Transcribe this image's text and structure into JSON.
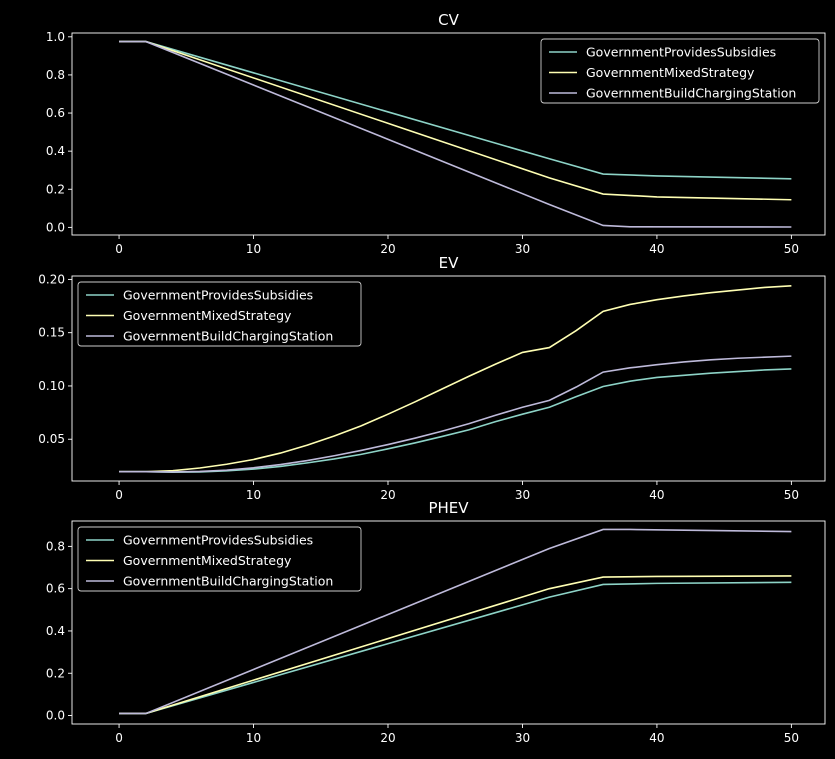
{
  "figure": {
    "background": "#000000",
    "foreground": "#ffffff"
  },
  "chart_data": [
    {
      "type": "line",
      "title": "CV",
      "xlim": [
        -3.5,
        52.5
      ],
      "ylim": [
        -0.04,
        1.02
      ],
      "xticks": [
        0,
        10,
        20,
        30,
        40,
        50
      ],
      "yticks": [
        0.0,
        0.2,
        0.4,
        0.6,
        0.8,
        1.0
      ],
      "ytick_labels": [
        "0.0",
        "0.2",
        "0.4",
        "0.6",
        "0.8",
        "1.0"
      ],
      "legend_position": "upper right",
      "series": [
        {
          "name": "GovernmentProvidesSubsidies",
          "color": "#8dd3c7",
          "x": [
            0,
            2,
            32,
            36,
            40,
            50
          ],
          "y": [
            0.975,
            0.975,
            0.36,
            0.28,
            0.27,
            0.255
          ]
        },
        {
          "name": "GovernmentMixedStrategy",
          "color": "#ffffb3",
          "x": [
            0,
            2,
            32,
            36,
            40,
            50
          ],
          "y": [
            0.975,
            0.975,
            0.26,
            0.175,
            0.16,
            0.145
          ]
        },
        {
          "name": "GovernmentBuildChargingStation",
          "color": "#bebada",
          "x": [
            0,
            2,
            32,
            36,
            38,
            50
          ],
          "y": [
            0.975,
            0.975,
            0.12,
            0.01,
            0.003,
            0.002
          ]
        }
      ]
    },
    {
      "type": "line",
      "title": "EV",
      "xlim": [
        -3.5,
        52.5
      ],
      "ylim": [
        0.0108,
        0.2032
      ],
      "xticks": [
        0,
        10,
        20,
        30,
        40,
        50
      ],
      "yticks": [
        0.05,
        0.1,
        0.15,
        0.2
      ],
      "ytick_labels": [
        "0.05",
        "0.10",
        "0.15",
        "0.20"
      ],
      "legend_position": "upper left",
      "series": [
        {
          "name": "GovernmentProvidesSubsidies",
          "color": "#8dd3c7",
          "x": [
            0,
            2,
            4,
            6,
            8,
            10,
            12,
            14,
            16,
            18,
            20,
            22,
            24,
            26,
            28,
            30,
            32,
            34,
            36,
            38,
            40,
            42,
            44,
            46,
            48,
            50
          ],
          "y": [
            0.0195,
            0.0195,
            0.019,
            0.0193,
            0.0203,
            0.022,
            0.0245,
            0.0278,
            0.0315,
            0.0358,
            0.041,
            0.0465,
            0.0525,
            0.0588,
            0.0665,
            0.0735,
            0.08,
            0.09,
            0.0995,
            0.1045,
            0.108,
            0.11,
            0.112,
            0.1135,
            0.115,
            0.116
          ]
        },
        {
          "name": "GovernmentMixedStrategy",
          "color": "#ffffb3",
          "x": [
            0,
            2,
            4,
            6,
            8,
            10,
            12,
            14,
            16,
            18,
            20,
            22,
            24,
            26,
            28,
            30,
            32,
            34,
            36,
            38,
            40,
            42,
            44,
            46,
            48,
            50
          ],
          "y": [
            0.0195,
            0.0195,
            0.0205,
            0.023,
            0.0265,
            0.031,
            0.037,
            0.0445,
            0.053,
            0.0625,
            0.0735,
            0.085,
            0.097,
            0.109,
            0.1205,
            0.1315,
            0.136,
            0.152,
            0.17,
            0.1765,
            0.181,
            0.1845,
            0.1875,
            0.19,
            0.1925,
            0.194
          ]
        },
        {
          "name": "GovernmentBuildChargingStation",
          "color": "#bebada",
          "x": [
            0,
            2,
            4,
            6,
            8,
            10,
            12,
            14,
            16,
            18,
            20,
            22,
            24,
            26,
            28,
            30,
            32,
            34,
            36,
            38,
            40,
            42,
            44,
            46,
            48,
            50
          ],
          "y": [
            0.0195,
            0.0195,
            0.0193,
            0.0198,
            0.021,
            0.0232,
            0.0262,
            0.03,
            0.0345,
            0.0395,
            0.045,
            0.051,
            0.0575,
            0.0645,
            0.0725,
            0.08,
            0.0865,
            0.099,
            0.113,
            0.117,
            0.12,
            0.1225,
            0.1245,
            0.126,
            0.127,
            0.128
          ]
        }
      ]
    },
    {
      "type": "line",
      "title": "PHEV",
      "xlim": [
        -3.5,
        52.5
      ],
      "ylim": [
        -0.04,
        0.92
      ],
      "xticks": [
        0,
        10,
        20,
        30,
        40,
        50
      ],
      "yticks": [
        0.0,
        0.2,
        0.4,
        0.6,
        0.8
      ],
      "ytick_labels": [
        "0.0",
        "0.2",
        "0.4",
        "0.6",
        "0.8"
      ],
      "legend_position": "upper left",
      "series": [
        {
          "name": "GovernmentProvidesSubsidies",
          "color": "#8dd3c7",
          "x": [
            0,
            2,
            32,
            36,
            40,
            50
          ],
          "y": [
            0.01,
            0.01,
            0.56,
            0.62,
            0.625,
            0.63
          ]
        },
        {
          "name": "GovernmentMixedStrategy",
          "color": "#ffffb3",
          "x": [
            0,
            2,
            32,
            36,
            40,
            50
          ],
          "y": [
            0.01,
            0.01,
            0.6,
            0.655,
            0.658,
            0.66
          ]
        },
        {
          "name": "GovernmentBuildChargingStation",
          "color": "#bebada",
          "x": [
            0,
            2,
            32,
            36,
            38,
            50
          ],
          "y": [
            0.01,
            0.01,
            0.79,
            0.88,
            0.88,
            0.87
          ]
        }
      ]
    }
  ]
}
